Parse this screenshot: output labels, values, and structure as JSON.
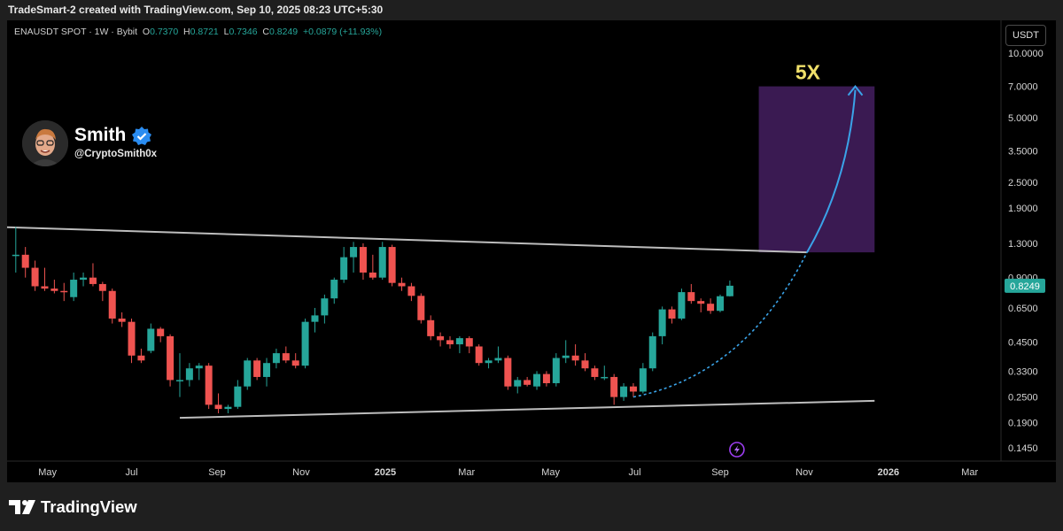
{
  "header": {
    "attribution": "TradeSmart-2 created with TradingView.com, Sep 10, 2025 08:23 UTC+5:30"
  },
  "legend": {
    "symbol": "ENAUSDT SPOT · 1W · Bybit",
    "o_label": "O",
    "o_value": "0.7370",
    "h_label": "H",
    "h_value": "0.8721",
    "l_label": "L",
    "l_value": "0.7346",
    "c_label": "C",
    "c_value": "0.8249",
    "change": "+0.0879 (+11.93%)"
  },
  "currency_button": "USDT",
  "profile": {
    "name": "Smith",
    "handle": "@CryptoSmith0x",
    "verified_icon": "verified-badge-icon"
  },
  "brand": {
    "name": "TradingView",
    "logo_icon": "tradingview-logo-icon"
  },
  "colors": {
    "bull": "#26a69a",
    "bear": "#ef5350",
    "trendline": "#bdbdbd",
    "target_box": "#3a1a52",
    "target_curve": "#3aa3e8",
    "target_text": "#f0e06a",
    "price_label": "#26a69a"
  },
  "chart_data": {
    "type": "candlestick",
    "y_scale": "log",
    "y_ticks": [
      "10.0000",
      "7.0000",
      "5.0000",
      "3.5000",
      "2.5000",
      "1.9000",
      "1.3000",
      "0.9000",
      "0.6500",
      "0.4500",
      "0.3300",
      "0.2500",
      "0.1900",
      "0.1450"
    ],
    "x_ticks": [
      {
        "label": "May",
        "date": "2024-05-01"
      },
      {
        "label": "Jul",
        "date": "2024-07-01"
      },
      {
        "label": "Sep",
        "date": "2024-09-01"
      },
      {
        "label": "Nov",
        "date": "2024-11-01"
      },
      {
        "label": "2025",
        "date": "2025-01-01"
      },
      {
        "label": "Mar",
        "date": "2025-03-01"
      },
      {
        "label": "May",
        "date": "2025-05-01"
      },
      {
        "label": "Jul",
        "date": "2025-07-01"
      },
      {
        "label": "Sep",
        "date": "2025-09-01"
      },
      {
        "label": "Nov",
        "date": "2025-11-01"
      },
      {
        "label": "2026",
        "date": "2026-01-01"
      },
      {
        "label": "Mar",
        "date": "2026-03-01"
      }
    ],
    "current_price": "0.8249",
    "candles": [
      {
        "t": "2024-04-08",
        "o": 1.15,
        "h": 1.55,
        "l": 0.95,
        "c": 1.15
      },
      {
        "t": "2024-04-15",
        "o": 1.15,
        "h": 1.25,
        "l": 0.9,
        "c": 1.0
      },
      {
        "t": "2024-04-22",
        "o": 1.0,
        "h": 1.08,
        "l": 0.78,
        "c": 0.82
      },
      {
        "t": "2024-04-29",
        "o": 0.82,
        "h": 1.0,
        "l": 0.78,
        "c": 0.8
      },
      {
        "t": "2024-05-06",
        "o": 0.8,
        "h": 0.88,
        "l": 0.76,
        "c": 0.78
      },
      {
        "t": "2024-05-13",
        "o": 0.78,
        "h": 0.85,
        "l": 0.7,
        "c": 0.77
      },
      {
        "t": "2024-05-20",
        "o": 0.73,
        "h": 0.95,
        "l": 0.7,
        "c": 0.88
      },
      {
        "t": "2024-05-27",
        "o": 0.88,
        "h": 0.95,
        "l": 0.82,
        "c": 0.9
      },
      {
        "t": "2024-06-03",
        "o": 0.9,
        "h": 1.05,
        "l": 0.82,
        "c": 0.84
      },
      {
        "t": "2024-06-10",
        "o": 0.84,
        "h": 0.86,
        "l": 0.7,
        "c": 0.78
      },
      {
        "t": "2024-06-17",
        "o": 0.78,
        "h": 0.8,
        "l": 0.55,
        "c": 0.58
      },
      {
        "t": "2024-06-24",
        "o": 0.58,
        "h": 0.62,
        "l": 0.53,
        "c": 0.56
      },
      {
        "t": "2024-07-01",
        "o": 0.56,
        "h": 0.58,
        "l": 0.36,
        "c": 0.39
      },
      {
        "t": "2024-07-08",
        "o": 0.39,
        "h": 0.42,
        "l": 0.36,
        "c": 0.37
      },
      {
        "t": "2024-07-15",
        "o": 0.41,
        "h": 0.55,
        "l": 0.4,
        "c": 0.52
      },
      {
        "t": "2024-07-22",
        "o": 0.52,
        "h": 0.53,
        "l": 0.45,
        "c": 0.48
      },
      {
        "t": "2024-07-29",
        "o": 0.48,
        "h": 0.49,
        "l": 0.28,
        "c": 0.3
      },
      {
        "t": "2024-08-05",
        "o": 0.3,
        "h": 0.4,
        "l": 0.25,
        "c": 0.3
      },
      {
        "t": "2024-08-12",
        "o": 0.3,
        "h": 0.36,
        "l": 0.28,
        "c": 0.34
      },
      {
        "t": "2024-08-19",
        "o": 0.34,
        "h": 0.36,
        "l": 0.3,
        "c": 0.35
      },
      {
        "t": "2024-08-26",
        "o": 0.35,
        "h": 0.36,
        "l": 0.22,
        "c": 0.23
      },
      {
        "t": "2024-09-02",
        "o": 0.23,
        "h": 0.26,
        "l": 0.21,
        "c": 0.22
      },
      {
        "t": "2024-09-09",
        "o": 0.22,
        "h": 0.23,
        "l": 0.21,
        "c": 0.225
      },
      {
        "t": "2024-09-16",
        "o": 0.225,
        "h": 0.3,
        "l": 0.22,
        "c": 0.28
      },
      {
        "t": "2024-09-23",
        "o": 0.28,
        "h": 0.38,
        "l": 0.27,
        "c": 0.37
      },
      {
        "t": "2024-09-30",
        "o": 0.37,
        "h": 0.38,
        "l": 0.3,
        "c": 0.31
      },
      {
        "t": "2024-10-07",
        "o": 0.31,
        "h": 0.38,
        "l": 0.28,
        "c": 0.36
      },
      {
        "t": "2024-10-14",
        "o": 0.36,
        "h": 0.42,
        "l": 0.34,
        "c": 0.4
      },
      {
        "t": "2024-10-21",
        "o": 0.4,
        "h": 0.43,
        "l": 0.36,
        "c": 0.37
      },
      {
        "t": "2024-10-28",
        "o": 0.37,
        "h": 0.4,
        "l": 0.34,
        "c": 0.35
      },
      {
        "t": "2024-11-04",
        "o": 0.35,
        "h": 0.58,
        "l": 0.34,
        "c": 0.56
      },
      {
        "t": "2024-11-11",
        "o": 0.56,
        "h": 0.65,
        "l": 0.5,
        "c": 0.6
      },
      {
        "t": "2024-11-18",
        "o": 0.6,
        "h": 0.75,
        "l": 0.55,
        "c": 0.72
      },
      {
        "t": "2024-11-25",
        "o": 0.72,
        "h": 0.9,
        "l": 0.68,
        "c": 0.88
      },
      {
        "t": "2024-12-02",
        "o": 0.88,
        "h": 1.25,
        "l": 0.85,
        "c": 1.12
      },
      {
        "t": "2024-12-09",
        "o": 1.12,
        "h": 1.32,
        "l": 0.95,
        "c": 1.25
      },
      {
        "t": "2024-12-16",
        "o": 1.25,
        "h": 1.3,
        "l": 0.88,
        "c": 0.95
      },
      {
        "t": "2024-12-23",
        "o": 0.95,
        "h": 1.15,
        "l": 0.88,
        "c": 0.9
      },
      {
        "t": "2024-12-30",
        "o": 0.9,
        "h": 1.32,
        "l": 0.88,
        "c": 1.25
      },
      {
        "t": "2025-01-06",
        "o": 1.25,
        "h": 1.28,
        "l": 0.82,
        "c": 0.85
      },
      {
        "t": "2025-01-13",
        "o": 0.85,
        "h": 0.9,
        "l": 0.78,
        "c": 0.82
      },
      {
        "t": "2025-01-20",
        "o": 0.82,
        "h": 0.85,
        "l": 0.7,
        "c": 0.74
      },
      {
        "t": "2025-01-27",
        "o": 0.74,
        "h": 0.76,
        "l": 0.55,
        "c": 0.57
      },
      {
        "t": "2025-02-03",
        "o": 0.57,
        "h": 0.6,
        "l": 0.46,
        "c": 0.48
      },
      {
        "t": "2025-02-10",
        "o": 0.48,
        "h": 0.5,
        "l": 0.43,
        "c": 0.46
      },
      {
        "t": "2025-02-17",
        "o": 0.46,
        "h": 0.48,
        "l": 0.42,
        "c": 0.44
      },
      {
        "t": "2025-02-24",
        "o": 0.44,
        "h": 0.48,
        "l": 0.4,
        "c": 0.47
      },
      {
        "t": "2025-03-03",
        "o": 0.47,
        "h": 0.48,
        "l": 0.4,
        "c": 0.43
      },
      {
        "t": "2025-03-10",
        "o": 0.43,
        "h": 0.44,
        "l": 0.35,
        "c": 0.36
      },
      {
        "t": "2025-03-17",
        "o": 0.36,
        "h": 0.38,
        "l": 0.34,
        "c": 0.37
      },
      {
        "t": "2025-03-24",
        "o": 0.37,
        "h": 0.43,
        "l": 0.36,
        "c": 0.38
      },
      {
        "t": "2025-03-31",
        "o": 0.38,
        "h": 0.39,
        "l": 0.27,
        "c": 0.28
      },
      {
        "t": "2025-04-07",
        "o": 0.28,
        "h": 0.31,
        "l": 0.26,
        "c": 0.3
      },
      {
        "t": "2025-04-14",
        "o": 0.3,
        "h": 0.31,
        "l": 0.28,
        "c": 0.285
      },
      {
        "t": "2025-04-21",
        "o": 0.28,
        "h": 0.33,
        "l": 0.27,
        "c": 0.32
      },
      {
        "t": "2025-04-28",
        "o": 0.32,
        "h": 0.33,
        "l": 0.28,
        "c": 0.29
      },
      {
        "t": "2025-05-05",
        "o": 0.29,
        "h": 0.4,
        "l": 0.28,
        "c": 0.38
      },
      {
        "t": "2025-05-12",
        "o": 0.38,
        "h": 0.46,
        "l": 0.36,
        "c": 0.39
      },
      {
        "t": "2025-05-19",
        "o": 0.39,
        "h": 0.44,
        "l": 0.35,
        "c": 0.37
      },
      {
        "t": "2025-05-26",
        "o": 0.37,
        "h": 0.4,
        "l": 0.33,
        "c": 0.34
      },
      {
        "t": "2025-06-02",
        "o": 0.34,
        "h": 0.35,
        "l": 0.3,
        "c": 0.31
      },
      {
        "t": "2025-06-09",
        "o": 0.31,
        "h": 0.35,
        "l": 0.3,
        "c": 0.31
      },
      {
        "t": "2025-06-16",
        "o": 0.31,
        "h": 0.32,
        "l": 0.23,
        "c": 0.25
      },
      {
        "t": "2025-06-23",
        "o": 0.25,
        "h": 0.29,
        "l": 0.24,
        "c": 0.28
      },
      {
        "t": "2025-06-30",
        "o": 0.28,
        "h": 0.29,
        "l": 0.25,
        "c": 0.265
      },
      {
        "t": "2025-07-07",
        "o": 0.265,
        "h": 0.36,
        "l": 0.26,
        "c": 0.34
      },
      {
        "t": "2025-07-14",
        "o": 0.34,
        "h": 0.5,
        "l": 0.33,
        "c": 0.48
      },
      {
        "t": "2025-07-21",
        "o": 0.48,
        "h": 0.66,
        "l": 0.44,
        "c": 0.64
      },
      {
        "t": "2025-07-28",
        "o": 0.64,
        "h": 0.66,
        "l": 0.55,
        "c": 0.58
      },
      {
        "t": "2025-08-04",
        "o": 0.58,
        "h": 0.8,
        "l": 0.57,
        "c": 0.77
      },
      {
        "t": "2025-08-11",
        "o": 0.77,
        "h": 0.84,
        "l": 0.68,
        "c": 0.7
      },
      {
        "t": "2025-08-18",
        "o": 0.7,
        "h": 0.72,
        "l": 0.62,
        "c": 0.68
      },
      {
        "t": "2025-08-25",
        "o": 0.68,
        "h": 0.72,
        "l": 0.61,
        "c": 0.63
      },
      {
        "t": "2025-09-01",
        "o": 0.63,
        "h": 0.75,
        "l": 0.62,
        "c": 0.737
      },
      {
        "t": "2025-09-08",
        "o": 0.737,
        "h": 0.8721,
        "l": 0.7346,
        "c": 0.8249
      }
    ],
    "trendlines": [
      {
        "name": "upper",
        "from": {
          "t": "2024-03-25",
          "p": 1.55
        },
        "to": {
          "t": "2025-11-03",
          "p": 1.18
        }
      },
      {
        "name": "lower",
        "from": {
          "t": "2024-08-05",
          "p": 0.2
        },
        "to": {
          "t": "2025-12-22",
          "p": 0.24
        }
      }
    ],
    "target_box": {
      "t_from": "2025-09-29",
      "t_to": "2025-12-22",
      "p_top": 7.0,
      "p_bottom": 1.18
    },
    "target_label": "5X",
    "projection": {
      "dotted_from": {
        "t": "2025-06-30",
        "p": 0.25
      },
      "dotted_to": {
        "t": "2025-11-03",
        "p": 1.18
      },
      "solid_to": {
        "t": "2025-12-08",
        "p": 7.0
      }
    },
    "event_marker": {
      "t": "2025-09-08",
      "icon": "lightning-icon"
    }
  }
}
